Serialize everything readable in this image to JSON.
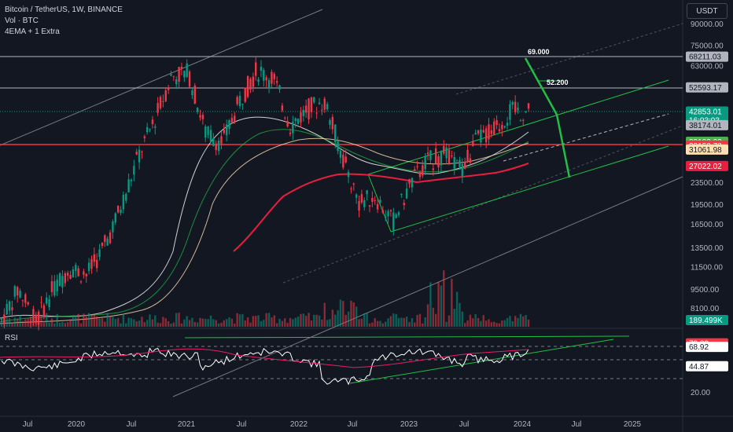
{
  "header": {
    "symbol_line": "Bitcoin / TetherUS, 1W, BINANCE",
    "volume_label": "Vol · BTC",
    "indicators_label": "4EMA + 1 Extra",
    "currency": "USDT"
  },
  "colors": {
    "background": "#131722",
    "candle_up": "#089981",
    "candle_down": "#f23645",
    "ema_red": "#e91e3f",
    "channel_green": "#21c045",
    "rsi_line": "#ffffff",
    "rsi_signal": "#e91e63"
  },
  "chart_data": {
    "type": "candlestick",
    "symbol": "Bitcoin / TetherUS",
    "interval": "1W",
    "exchange": "BINANCE",
    "y_scale": "log",
    "ylim": [
      7000,
      100000
    ],
    "price_ticks": [
      "90000.00",
      "75000.00",
      "63000.00",
      "23500.00",
      "19500.00",
      "16500.00",
      "13500.00",
      "11500.00",
      "9500.00",
      "8100.00"
    ],
    "time_ticks": [
      "Jul",
      "2020",
      "Jul",
      "2021",
      "Jul",
      "2022",
      "Jul",
      "2023",
      "Jul",
      "2024",
      "Jul",
      "2025"
    ],
    "price_badges": [
      {
        "value": "68211.03",
        "bg": "#b2b5be",
        "fg": "#131722"
      },
      {
        "value": "52593.17",
        "bg": "#b2b5be",
        "fg": "#131722"
      },
      {
        "value": "42853.01",
        "sub": "16:03:03",
        "bg": "#089981",
        "fg": "#ffffff"
      },
      {
        "value": "38174.01",
        "bg": "#b2b5be",
        "fg": "#131722"
      },
      {
        "value": "33183.08",
        "bg": "#4caf50",
        "fg": "#ffffff"
      },
      {
        "value": "32150.78",
        "bg": "#f23645",
        "fg": "#ffffff"
      },
      {
        "value": "31061.98",
        "bg": "#ffe0b2",
        "fg": "#131722"
      },
      {
        "value": "27022.02",
        "bg": "#e91e3f",
        "fg": "#ffffff"
      },
      {
        "value": "189.499K",
        "bg": "#089981",
        "fg": "#ffffff"
      }
    ],
    "horizontal_levels": [
      68211.03,
      52593.17,
      32150.78
    ],
    "annotations": [
      "69.000",
      "52.200"
    ],
    "candles_approx": [
      [
        7400,
        6600
      ],
      [
        9600,
        8000
      ],
      [
        7200,
        5000
      ],
      [
        9500,
        7000
      ],
      [
        11500,
        9000
      ],
      [
        10800,
        9800
      ],
      [
        13500,
        11000
      ],
      [
        19000,
        13500
      ],
      [
        29000,
        19000
      ],
      [
        40000,
        32000
      ],
      [
        58000,
        45000
      ],
      [
        60000,
        50000
      ],
      [
        36000,
        30000
      ],
      [
        33000,
        30000
      ],
      [
        47000,
        40000
      ],
      [
        61000,
        44000
      ],
      [
        57000,
        46000
      ],
      [
        38000,
        35000
      ],
      [
        44000,
        38000
      ],
      [
        47000,
        41000
      ],
      [
        30000,
        29000
      ],
      [
        20000,
        18000
      ],
      [
        21000,
        19000
      ],
      [
        16800,
        15800
      ],
      [
        23000,
        21000
      ],
      [
        28000,
        27000
      ],
      [
        30000,
        28000
      ],
      [
        26500,
        25000
      ],
      [
        34000,
        30000
      ],
      [
        37000,
        35000
      ],
      [
        43000,
        40000
      ],
      [
        42853,
        41000
      ]
    ],
    "rsi": {
      "label": "RSI",
      "ticks": [
        "20.00"
      ],
      "badges": [
        {
          "value": "73.32",
          "bg": "#f23645",
          "fg": "#ffffff"
        },
        {
          "value": "68.92",
          "bg": "#ffffff",
          "fg": "#131722"
        },
        {
          "value": "44.87",
          "bg": "#ffffff",
          "fg": "#131722"
        }
      ],
      "levels": [
        70,
        50,
        30
      ]
    }
  }
}
